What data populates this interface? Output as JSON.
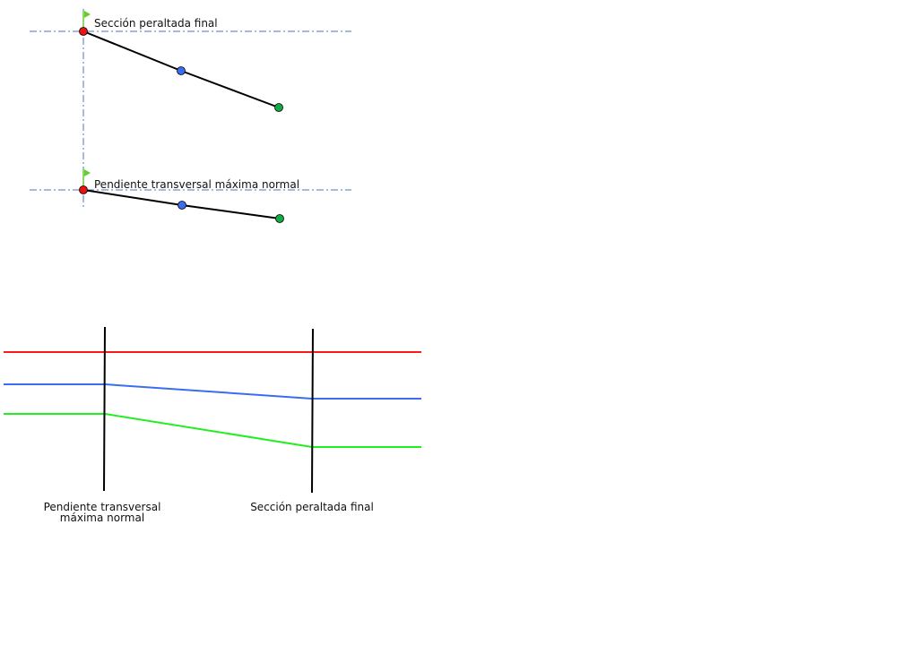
{
  "cross_sections": [
    {
      "label": "Sección peraltada final"
    },
    {
      "label": "Pendiente transversal máxima normal"
    }
  ],
  "profile": {
    "stations": [
      {
        "label_line1": "Pendiente transversal",
        "label_line2": "máxima normal"
      },
      {
        "label_line1": "Sección peraltada final"
      }
    ],
    "lines": [
      {
        "name": "red",
        "color": "#ff1a1a"
      },
      {
        "name": "blue",
        "color": "#3a6ef0"
      },
      {
        "name": "green",
        "color": "#22ee22"
      }
    ]
  },
  "colors": {
    "axis": "#4a7ab8",
    "point_red": "#ee1111",
    "point_blue": "#3a6ef0",
    "point_green": "#11aa44",
    "flag": "#66cc33"
  }
}
